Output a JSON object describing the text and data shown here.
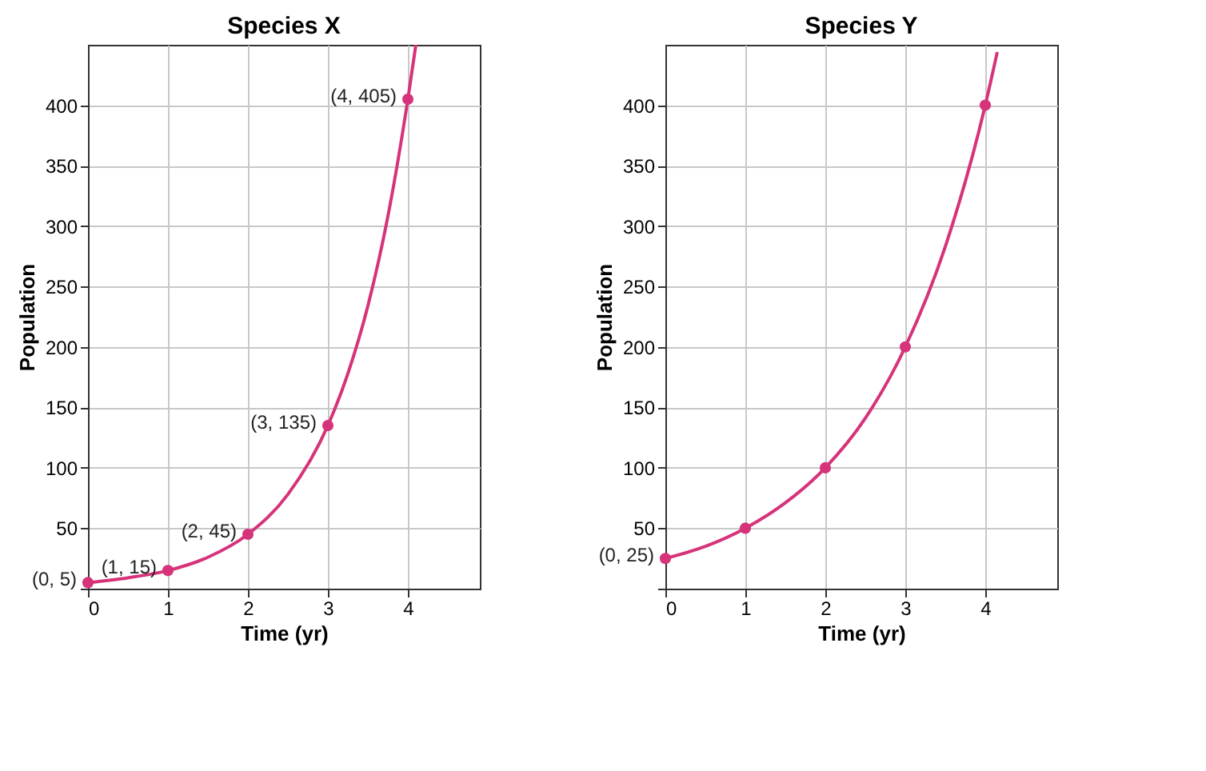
{
  "chart_data": [
    {
      "type": "scatter",
      "title": "Species X",
      "xlabel": "Time (yr)",
      "ylabel": "Population",
      "xlim": [
        0,
        4.9
      ],
      "xticks": [
        0,
        1,
        2,
        3,
        4
      ],
      "ylim": [
        0,
        450
      ],
      "yticks": [
        {
          "value": 0,
          "label": null
        },
        50,
        100,
        150,
        200,
        250,
        300,
        350,
        400
      ],
      "grid": true,
      "series": [
        {
          "type": "line",
          "marker": "none",
          "color": "#d6337a",
          "x": [
            0,
            0.5,
            1,
            1.5,
            2,
            2.5,
            3,
            3.25,
            3.5,
            3.75,
            4,
            4.1
          ],
          "values": [
            5,
            9,
            15,
            26,
            45,
            78,
            135,
            178,
            234,
            308,
            405,
            450
          ]
        },
        {
          "marker": "circle",
          "color": "#d6337a",
          "x": [
            0,
            1,
            2,
            3,
            4
          ],
          "values": [
            5,
            15,
            45,
            135,
            405
          ]
        }
      ],
      "annotations": [
        {
          "text": "(0, 5)",
          "x": 0,
          "y": 5
        },
        {
          "text": "(1, 15)",
          "x": 1,
          "y": 15
        },
        {
          "text": "(2, 45)",
          "x": 2,
          "y": 45
        },
        {
          "text": "(3, 135)",
          "x": 3,
          "y": 135
        },
        {
          "text": "(4, 405)",
          "x": 4,
          "y": 405
        }
      ]
    },
    {
      "type": "scatter",
      "title": "Species Y",
      "xlabel": "Time (yr)",
      "ylabel": "Population",
      "xlim": [
        0,
        4.9
      ],
      "xticks": [
        0,
        1,
        2,
        3,
        4
      ],
      "ylim": [
        0,
        450
      ],
      "yticks": [
        {
          "value": 0,
          "label": null
        },
        50,
        100,
        150,
        200,
        250,
        300,
        350,
        400
      ],
      "grid": true,
      "series": [
        {
          "type": "line",
          "marker": "none",
          "color": "#d6337a",
          "x": [
            0,
            0.5,
            1,
            1.5,
            2,
            2.5,
            3,
            3.5,
            4,
            4.15
          ],
          "values": [
            25,
            35,
            50,
            71,
            100,
            141,
            200,
            283,
            400,
            444
          ]
        },
        {
          "marker": "circle",
          "color": "#d6337a",
          "x": [
            0,
            1,
            2,
            3,
            4
          ],
          "values": [
            25,
            50,
            100,
            200,
            400
          ]
        }
      ],
      "annotations": [
        {
          "text": "(0, 25)",
          "x": 0,
          "y": 25
        }
      ]
    }
  ]
}
